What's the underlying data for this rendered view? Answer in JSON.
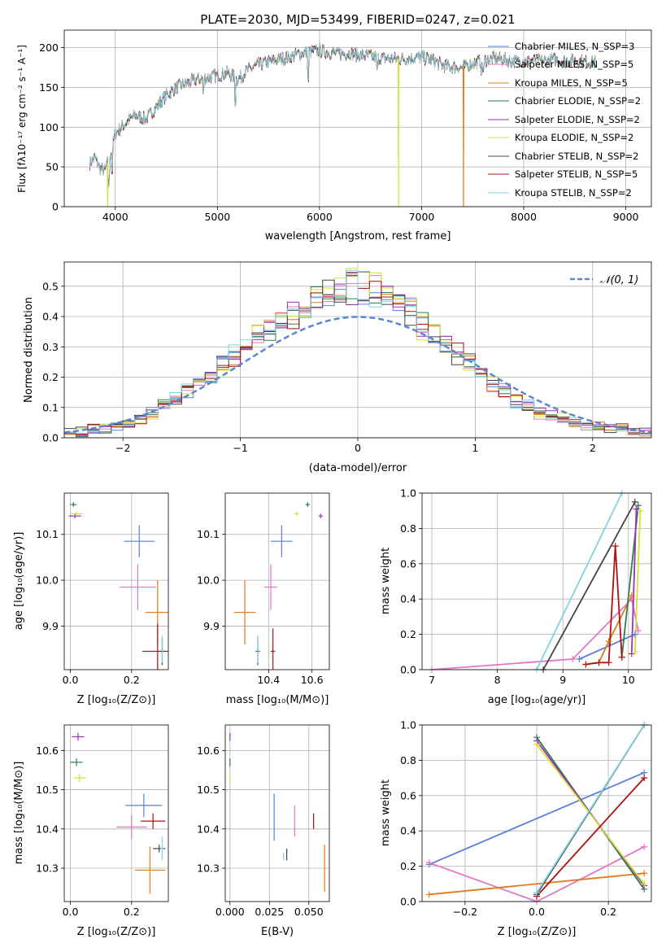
{
  "colors": {
    "chabrier_miles": "#5b7fd8",
    "salpeter_miles": "#e377c2",
    "kroupa_miles": "#e07b1a",
    "chabrier_elodie": "#2e7d4f",
    "salpeter_elodie": "#9b30c0",
    "kroupa_elodie": "#d4e03a",
    "chabrier_stelib": "#444444",
    "salpeter_stelib": "#b01010",
    "kroupa_stelib": "#7fd3e0",
    "normal": "#5b86d0"
  },
  "panels": {
    "spectrum": {
      "title": "PLATE=2030, MJD=53499, FIBERID=0247, z=0.021",
      "xlabel": "wavelength [Angstrom, rest frame]",
      "ylabel": "Flux [fλ10⁻¹⁷ erg cm⁻² s⁻¹ A⁻¹]",
      "xticks": [
        "4000",
        "5000",
        "6000",
        "7000",
        "8000",
        "9000"
      ],
      "yticks": [
        "0",
        "50",
        "100",
        "150",
        "200"
      ]
    },
    "residuals": {
      "xlabel": "(data-model)/error",
      "ylabel": "Normed distribution",
      "xticks": [
        "−2",
        "−1",
        "0",
        "1",
        "2"
      ],
      "yticks": [
        "0.0",
        "0.1",
        "0.2",
        "0.3",
        "0.4",
        "0.5"
      ]
    },
    "age_z": {
      "xlabel": "Z [log₁₀(Z/Z⊙)]",
      "ylabel": "age  [log₁₀(age/yr)]",
      "xticks": [
        "0.0",
        "0.2"
      ],
      "yticks": [
        "9.9",
        "10.0",
        "10.1"
      ]
    },
    "age_mass": {
      "xlabel": "mass [log₁₀(M/M⊙)]",
      "xticks": [
        "10.4",
        "10.6"
      ],
      "yticks": [
        "9.9",
        "10.0",
        "10.1"
      ]
    },
    "weight_age": {
      "xlabel": "age  [log₁₀(age/yr)]",
      "ylabel": "mass weight",
      "xticks": [
        "7",
        "8",
        "9",
        "10"
      ],
      "yticks": [
        "0.0",
        "0.2",
        "0.4",
        "0.6",
        "0.8",
        "1.0"
      ]
    },
    "mass_z": {
      "xlabel": "Z [log₁₀(Z/Z⊙)]",
      "ylabel": "mass [log₁₀(M/M⊙)]",
      "xticks": [
        "0.0",
        "0.2"
      ],
      "yticks": [
        "10.3",
        "10.4",
        "10.5",
        "10.6"
      ]
    },
    "mass_ebv": {
      "xlabel": "E(B-V)",
      "xticks": [
        "0.000",
        "0.025",
        "0.050"
      ],
      "yticks": [
        "10.3",
        "10.4",
        "10.5",
        "10.6"
      ]
    },
    "weight_z": {
      "xlabel": "Z [log₁₀(Z/Z⊙)]",
      "ylabel": "mass weight",
      "xticks": [
        "−0.2",
        "0.0",
        "0.2"
      ],
      "yticks": [
        "0.0",
        "0.2",
        "0.4",
        "0.6",
        "0.8",
        "1.0"
      ]
    }
  },
  "legend": {
    "spectrum": [
      "Chabrier MILES, N_SSP=3",
      "Salpeter MILES, N_SSP=5",
      "Kroupa MILES, N_SSP=5",
      "Chabrier ELODIE, N_SSP=2",
      "Salpeter ELODIE, N_SSP=2",
      "Kroupa ELODIE, N_SSP=2",
      "Chabrier STELIB, N_SSP=2",
      "Salpeter STELIB, N_SSP=5",
      "Kroupa STELIB, N_SSP=2"
    ],
    "residuals": "𝒩(0, 1)"
  },
  "chart_data": [
    {
      "type": "line",
      "title": "PLATE=2030, MJD=53499, FIBERID=0247, z=0.021",
      "xlabel": "wavelength [Angstrom, rest frame]",
      "ylabel": "Flux [fλ10⁻¹⁷ erg cm⁻² s⁻¹ A⁻¹]",
      "xlim": [
        3500,
        9250
      ],
      "ylim": [
        0,
        222
      ],
      "legend_position": "right",
      "series": [
        {
          "name": "Chabrier MILES, N_SSP=3"
        },
        {
          "name": "Salpeter MILES, N_SSP=5"
        },
        {
          "name": "Kroupa MILES, N_SSP=5"
        },
        {
          "name": "Chabrier ELODIE, N_SSP=2"
        },
        {
          "name": "Salpeter ELODIE, N_SSP=2"
        },
        {
          "name": "Kroupa ELODIE, N_SSP=2"
        },
        {
          "name": "Chabrier STELIB, N_SSP=2"
        },
        {
          "name": "Salpeter STELIB, N_SSP=5"
        },
        {
          "name": "Kroupa STELIB, N_SSP=2"
        }
      ],
      "continuum": {
        "x": [
          3750,
          3800,
          3850,
          3900,
          3950,
          4000,
          4100,
          4200,
          4300,
          4400,
          4500,
          4600,
          4700,
          4800,
          4900,
          5000,
          5100,
          5200,
          5300,
          5400,
          5500,
          5600,
          5700,
          5800,
          5900,
          6000,
          6100,
          6200,
          6300,
          6400,
          6500,
          6600,
          6700,
          6800,
          6900,
          7000,
          7100,
          7200,
          7300,
          7400,
          7500,
          7600,
          7700,
          7800,
          7900,
          8000,
          8100,
          8200,
          8300,
          8400,
          8500,
          8600,
          8700
        ],
        "y": [
          55,
          62,
          48,
          45,
          65,
          92,
          105,
          115,
          110,
          125,
          140,
          150,
          155,
          160,
          162,
          165,
          168,
          160,
          172,
          178,
          182,
          185,
          188,
          192,
          195,
          196,
          194,
          192,
          193,
          190,
          189,
          187,
          186,
          186,
          187,
          188,
          185,
          178,
          176,
          175,
          180,
          184,
          186,
          185,
          183,
          183,
          184,
          183,
          185,
          183,
          184,
          182,
          182
        ]
      },
      "dropouts": [
        {
          "x": 3925,
          "model": "Kroupa ELODIE"
        },
        {
          "x": 6775,
          "model": "Kroupa ELODIE"
        },
        {
          "x": 7410,
          "model": "Kroupa MILES"
        }
      ]
    },
    {
      "type": "bar",
      "xlabel": "(data-model)/error",
      "ylabel": "Normed distribution",
      "xlim": [
        -2.5,
        2.5
      ],
      "ylim": [
        0,
        0.58
      ],
      "grid": true,
      "reference_curve": "N(0,1)",
      "bin_centers": [
        -2.45,
        -2.35,
        -2.25,
        -2.15,
        -2.05,
        -1.95,
        -1.85,
        -1.75,
        -1.65,
        -1.55,
        -1.45,
        -1.35,
        -1.25,
        -1.15,
        -1.05,
        -0.95,
        -0.85,
        -0.75,
        -0.65,
        -0.55,
        -0.45,
        -0.35,
        -0.25,
        -0.15,
        -0.05,
        0.05,
        0.15,
        0.25,
        0.35,
        0.45,
        0.55,
        0.65,
        0.75,
        0.85,
        0.95,
        1.05,
        1.15,
        1.25,
        1.35,
        1.45,
        1.55,
        1.65,
        1.75,
        1.85,
        1.95,
        2.05,
        2.15,
        2.25,
        2.35,
        2.45
      ],
      "envelope_values": [
        0.02,
        0.02,
        0.03,
        0.03,
        0.04,
        0.04,
        0.06,
        0.08,
        0.11,
        0.13,
        0.16,
        0.19,
        0.21,
        0.24,
        0.27,
        0.3,
        0.33,
        0.36,
        0.38,
        0.4,
        0.43,
        0.45,
        0.47,
        0.48,
        0.49,
        0.49,
        0.48,
        0.46,
        0.43,
        0.41,
        0.37,
        0.34,
        0.31,
        0.27,
        0.24,
        0.21,
        0.18,
        0.15,
        0.12,
        0.1,
        0.08,
        0.07,
        0.06,
        0.05,
        0.04,
        0.04,
        0.03,
        0.03,
        0.02,
        0.02
      ]
    },
    {
      "type": "scatter",
      "xlabel": "Z [log₁₀(Z/Z⊙)]",
      "ylabel": "age  [log₁₀(age/yr)]",
      "xlim": [
        -0.02,
        0.32
      ],
      "ylim": [
        9.805,
        10.19
      ],
      "points": [
        {
          "model": "Chabrier MILES",
          "x": 0.225,
          "y": 10.085,
          "xerr": 0.05,
          "yerr": 0.035
        },
        {
          "model": "Salpeter MILES",
          "x": 0.22,
          "y": 9.985,
          "xerr": 0.06,
          "yerr": 0.05
        },
        {
          "model": "Kroupa MILES",
          "x": 0.285,
          "y": 9.93,
          "xerr": 0.04,
          "yerr": 0.07
        },
        {
          "model": "Chabrier ELODIE",
          "x": 0.01,
          "y": 10.165,
          "xerr": 0.01,
          "yerr": 0.005
        },
        {
          "model": "Salpeter ELODIE",
          "x": 0.015,
          "y": 10.14,
          "xerr": 0.02,
          "yerr": 0.005
        },
        {
          "model": "Kroupa ELODIE",
          "x": 0.02,
          "y": 10.145,
          "xerr": 0.02,
          "yerr": 0.005
        },
        {
          "model": "Chabrier STELIB",
          "x": 0.3,
          "y": 9.845,
          "xerr": 0.01,
          "yerr": 0.03
        },
        {
          "model": "Salpeter STELIB",
          "x": 0.285,
          "y": 9.845,
          "xerr": 0.05,
          "yerr": 0.06
        },
        {
          "model": "Kroupa STELIB",
          "x": 0.3,
          "y": 9.85,
          "xerr": 0.005,
          "yerr": 0.03
        }
      ]
    },
    {
      "type": "scatter",
      "xlabel": "mass [log₁₀(M/M⊙)]",
      "xlim": [
        10.2,
        10.68
      ],
      "ylim": [
        9.805,
        10.19
      ],
      "points": [
        {
          "model": "Chabrier MILES",
          "x": 10.46,
          "y": 10.085,
          "xerr": 0.05,
          "yerr": 0.035
        },
        {
          "model": "Salpeter MILES",
          "x": 10.41,
          "y": 9.985,
          "xerr": 0.03,
          "yerr": 0.05
        },
        {
          "model": "Kroupa MILES",
          "x": 10.29,
          "y": 9.93,
          "xerr": 0.05,
          "yerr": 0.07
        },
        {
          "model": "Chabrier ELODIE",
          "x": 10.58,
          "y": 10.165,
          "xerr": 0.01,
          "yerr": 0.005
        },
        {
          "model": "Salpeter ELODIE",
          "x": 10.64,
          "y": 10.14,
          "xerr": 0.01,
          "yerr": 0.005
        },
        {
          "model": "Kroupa ELODIE",
          "x": 10.53,
          "y": 10.145,
          "xerr": 0.01,
          "yerr": 0.005
        },
        {
          "model": "Chabrier STELIB",
          "x": 10.35,
          "y": 9.845,
          "xerr": 0.01,
          "yerr": 0.03
        },
        {
          "model": "Salpeter STELIB",
          "x": 10.42,
          "y": 9.845,
          "xerr": 0.01,
          "yerr": 0.05
        },
        {
          "model": "Kroupa STELIB",
          "x": 10.35,
          "y": 9.85,
          "xerr": 0.005,
          "yerr": 0.03
        }
      ]
    },
    {
      "type": "line",
      "xlabel": "age  [log₁₀(age/yr)]",
      "ylabel": "mass weight",
      "xlim": [
        6.85,
        10.35
      ],
      "ylim": [
        0,
        1
      ],
      "series": [
        {
          "model": "Chabrier MILES",
          "x": [
            9.25,
            10.1
          ],
          "y": [
            0.06,
            0.2
          ]
        },
        {
          "model": "Salpeter MILES",
          "x": [
            7.0,
            9.15,
            10.05,
            10.15
          ],
          "y": [
            0.0,
            0.06,
            0.4,
            0.22
          ]
        },
        {
          "model": "Kroupa MILES",
          "x": [
            9.35,
            9.55,
            9.7,
            10.05
          ],
          "y": [
            0.03,
            0.04,
            0.16,
            0.42
          ]
        },
        {
          "model": "Chabrier ELODIE",
          "x": [
            9.9,
            10.15
          ],
          "y": [
            0.07,
            0.93
          ]
        },
        {
          "model": "Salpeter ELODIE",
          "x": [
            10.05,
            10.12
          ],
          "y": [
            0.09,
            0.91
          ]
        },
        {
          "model": "Kroupa ELODIE",
          "x": [
            10.1,
            10.18
          ],
          "y": [
            0.1,
            0.9
          ]
        },
        {
          "model": "Chabrier STELIB",
          "x": [
            8.7,
            10.1
          ],
          "y": [
            0.0,
            0.95
          ]
        },
        {
          "model": "Salpeter STELIB",
          "x": [
            9.35,
            9.55,
            9.7,
            9.8,
            9.9
          ],
          "y": [
            0.03,
            0.04,
            0.04,
            0.7,
            0.07
          ]
        },
        {
          "model": "Kroupa STELIB",
          "x": [
            8.6,
            9.9
          ],
          "y": [
            0.0,
            1.0
          ]
        }
      ]
    },
    {
      "type": "scatter",
      "xlabel": "Z [log₁₀(Z/Z⊙)]",
      "ylabel": "mass [log₁₀(M/M⊙)]",
      "xlim": [
        -0.02,
        0.32
      ],
      "ylim": [
        10.215,
        10.665
      ],
      "points": [
        {
          "model": "Chabrier MILES",
          "x": 0.24,
          "y": 10.46,
          "xerr": 0.06,
          "yerr": 0.03
        },
        {
          "model": "Salpeter MILES",
          "x": 0.2,
          "y": 10.405,
          "xerr": 0.05,
          "yerr": 0.03
        },
        {
          "model": "Kroupa MILES",
          "x": 0.26,
          "y": 10.295,
          "xerr": 0.05,
          "yerr": 0.06
        },
        {
          "model": "Chabrier ELODIE",
          "x": 0.02,
          "y": 10.57,
          "xerr": 0.02,
          "yerr": 0.01
        },
        {
          "model": "Salpeter ELODIE",
          "x": 0.025,
          "y": 10.635,
          "xerr": 0.02,
          "yerr": 0.01
        },
        {
          "model": "Kroupa ELODIE",
          "x": 0.03,
          "y": 10.53,
          "xerr": 0.02,
          "yerr": 0.01
        },
        {
          "model": "Chabrier STELIB",
          "x": 0.29,
          "y": 10.35,
          "xerr": 0.02,
          "yerr": 0.01
        },
        {
          "model": "Salpeter STELIB",
          "x": 0.27,
          "y": 10.42,
          "xerr": 0.04,
          "yerr": 0.02
        },
        {
          "model": "Kroupa STELIB",
          "x": 0.3,
          "y": 10.35,
          "xerr": 0.005,
          "yerr": 0.03
        }
      ]
    },
    {
      "type": "scatter",
      "xlabel": "E(B-V)",
      "xlim": [
        -0.003,
        0.063
      ],
      "ylim": [
        10.215,
        10.665
      ],
      "points": [
        {
          "model": "Chabrier MILES",
          "x": 0.028,
          "y": 10.43,
          "yerr": 0.06
        },
        {
          "model": "Salpeter MILES",
          "x": 0.041,
          "y": 10.42,
          "yerr": 0.04
        },
        {
          "model": "Kroupa MILES",
          "x": 0.06,
          "y": 10.3,
          "yerr": 0.06
        },
        {
          "model": "Chabrier ELODIE",
          "x": 0.0,
          "y": 10.57,
          "yerr": 0.01
        },
        {
          "model": "Salpeter ELODIE",
          "x": 0.0,
          "y": 10.635,
          "yerr": 0.01
        },
        {
          "model": "Kroupa ELODIE",
          "x": 0.0,
          "y": 10.53,
          "yerr": 0.01
        },
        {
          "model": "Chabrier STELIB",
          "x": 0.036,
          "y": 10.335,
          "yerr": 0.015
        },
        {
          "model": "Salpeter STELIB",
          "x": 0.053,
          "y": 10.42,
          "yerr": 0.02
        },
        {
          "model": "Kroupa STELIB",
          "x": 0.034,
          "y": 10.33,
          "yerr": 0.01
        }
      ]
    },
    {
      "type": "line",
      "xlabel": "Z [log₁₀(Z/Z⊙)]",
      "ylabel": "mass weight",
      "xlim": [
        -0.32,
        0.32
      ],
      "ylim": [
        0,
        1
      ],
      "series": [
        {
          "model": "Chabrier MILES",
          "x": [
            -0.3,
            0.3
          ],
          "y": [
            0.21,
            0.73
          ]
        },
        {
          "model": "Salpeter MILES",
          "x": [
            -0.3,
            0.0,
            0.3
          ],
          "y": [
            0.22,
            0.0,
            0.31
          ]
        },
        {
          "model": "Kroupa MILES",
          "x": [
            -0.3,
            0.3
          ],
          "y": [
            0.04,
            0.16
          ]
        },
        {
          "model": "Chabrier ELODIE",
          "x": [
            0.0,
            0.3
          ],
          "y": [
            0.93,
            0.07
          ]
        },
        {
          "model": "Salpeter ELODIE",
          "x": [
            0.0,
            0.3
          ],
          "y": [
            0.91,
            0.09
          ]
        },
        {
          "model": "Kroupa ELODIE",
          "x": [
            0.0,
            0.3
          ],
          "y": [
            0.89,
            0.1
          ]
        },
        {
          "model": "Chabrier STELIB",
          "x": [
            0.0,
            0.3
          ],
          "y": [
            0.04,
            1.0
          ]
        },
        {
          "model": "Salpeter STELIB",
          "x": [
            0.0,
            0.3
          ],
          "y": [
            0.03,
            0.7
          ]
        },
        {
          "model": "Kroupa STELIB",
          "x": [
            0.0,
            0.3
          ],
          "y": [
            0.05,
            1.0
          ]
        }
      ]
    }
  ]
}
